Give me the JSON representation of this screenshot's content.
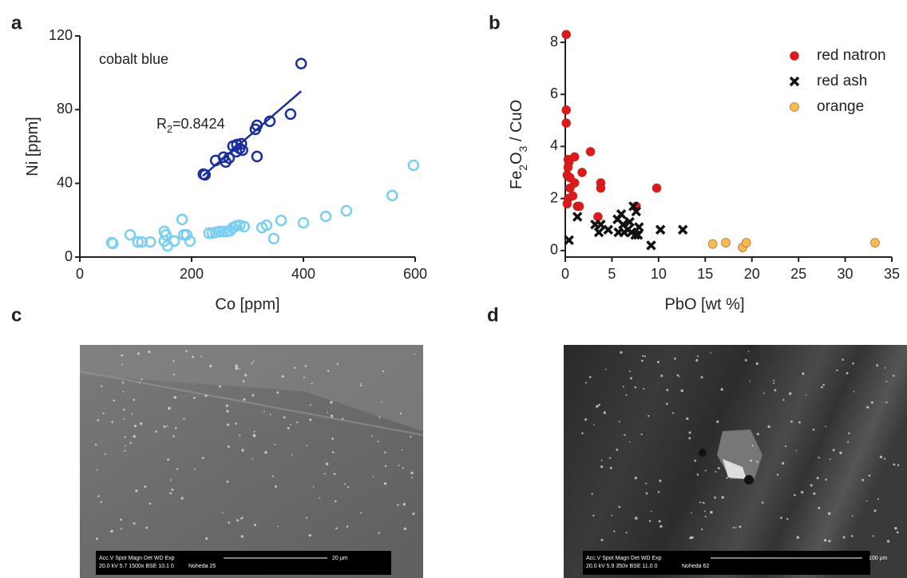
{
  "chart_data": [
    {
      "panel": "a",
      "type": "scatter",
      "xlabel": "Co [ppm]",
      "ylabel": [
        {
          "text": "Ni [ppm]"
        }
      ],
      "xlim": [
        0,
        600
      ],
      "ylim": [
        0,
        120
      ],
      "xticks": [
        0,
        200,
        400,
        600
      ],
      "yticks": [
        0,
        40,
        80,
        120
      ],
      "annotation": "cobalt blue",
      "fit_label": [
        {
          "text": "R"
        },
        {
          "text": "2",
          "sub": true
        },
        {
          "text": "=0.8424"
        }
      ],
      "series": [
        {
          "color": "#1b2f9e",
          "marker": "circle-open",
          "x": [
            396,
            377,
            340,
            317,
            314,
            221,
            224,
            243,
            257,
            261,
            267,
            274,
            281,
            286,
            289,
            280,
            291,
            317
          ],
          "values": [
            105,
            77.6,
            73.7,
            71.5,
            69.3,
            45,
            44.6,
            52.4,
            54.2,
            51.6,
            53.7,
            60.2,
            61.1,
            58.9,
            61.5,
            57.2,
            58,
            54.6
          ],
          "fit": {
            "x": [
              220,
              396
            ],
            "values": [
              44,
              90
            ]
          }
        },
        {
          "color": "#79cff2",
          "marker": "circle-open",
          "x": [
            57,
            59,
            90,
            104,
            111,
            126,
            151,
            154,
            151,
            157,
            169,
            183,
            186,
            191,
            197,
            231,
            237,
            243,
            250,
            257,
            263,
            269,
            274,
            280,
            286,
            294,
            326,
            334,
            347,
            360,
            400,
            440,
            477,
            559,
            597
          ],
          "values": [
            7.8,
            7.4,
            12.1,
            8.2,
            8.2,
            8.2,
            13.9,
            12.1,
            8.7,
            6.1,
            8.7,
            20.4,
            12.1,
            12.1,
            8.7,
            13,
            13,
            13.4,
            13.9,
            13.9,
            13.9,
            14.3,
            16,
            16.9,
            17.3,
            16.5,
            16,
            17.3,
            10,
            19.9,
            18.6,
            22.1,
            25.1,
            33.4,
            49.8
          ]
        }
      ]
    },
    {
      "panel": "b",
      "type": "scatter",
      "xlabel": "PbO [wt %]",
      "ylabel": [
        {
          "text": "Fe"
        },
        {
          "text": "2",
          "sub": true
        },
        {
          "text": "O"
        },
        {
          "text": "3",
          "sub": true
        },
        {
          "text": " / CuO"
        }
      ],
      "xlim": [
        0,
        35
      ],
      "ylim": [
        -0.25,
        8.4
      ],
      "xticks": [
        0,
        5,
        10,
        15,
        20,
        25,
        30,
        35
      ],
      "yticks": [
        0,
        2,
        4,
        6,
        8
      ],
      "legend": "upper right",
      "series": [
        {
          "name": "red natron",
          "color": "#e3161b",
          "marker": "circle",
          "x": [
            0.1,
            0.1,
            0.1,
            0.3,
            0.4,
            0.3,
            1,
            0.2,
            0.5,
            1,
            1.8,
            2.7,
            3.8,
            3.8,
            0.5,
            0.3,
            0.8,
            1.3,
            1.5,
            0.2,
            3.5,
            9.8,
            7.6
          ],
          "values": [
            8.3,
            5.4,
            4.9,
            3.5,
            3.4,
            3.2,
            3.6,
            2.9,
            2.8,
            2.6,
            3,
            3.8,
            2.6,
            2.4,
            2.4,
            2,
            2.1,
            1.7,
            1.7,
            1.8,
            1.3,
            2.4,
            1.7
          ]
        },
        {
          "name": "red ash",
          "color": "#111111",
          "marker": "x",
          "x": [
            0.4,
            1.3,
            3.2,
            3.6,
            3.8,
            4.6,
            5.6,
            6,
            5.7,
            6.2,
            6.7,
            6.9,
            7.3,
            7.6,
            7.1,
            7.8,
            7.9,
            9.2,
            10.2,
            12.6,
            6.3,
            7.5
          ],
          "values": [
            0.4,
            1.3,
            1,
            0.7,
            1,
            0.8,
            1.2,
            1.4,
            0.7,
            1,
            0.8,
            1.1,
            1.7,
            1.5,
            0.7,
            0.6,
            0.9,
            0.2,
            0.8,
            0.8,
            0.7,
            0.6
          ]
        },
        {
          "name": "orange",
          "color": "#f9bb4e",
          "marker": "circle",
          "x": [
            15.8,
            17.2,
            19,
            19.4,
            33.2
          ],
          "values": [
            0.25,
            0.3,
            0.12,
            0.3,
            0.3
          ]
        }
      ]
    }
  ],
  "micrographs": [
    {
      "panel": "c",
      "info_header": "Acc.V   Spot Magn     Det   WD   Exp",
      "info_values": "20.0 kV 5.7   1500x    BSE 10.1  0",
      "sample": "Noheda 25",
      "scale_bar": "20 µm"
    },
    {
      "panel": "d",
      "info_header": "Acc.V   Spot Magn     Det   WD   Exp",
      "info_values": "20.0 kV 5.9   350x     BSE 11.0  0",
      "sample": "Noheda 62",
      "scale_bar": "100 µm"
    }
  ]
}
